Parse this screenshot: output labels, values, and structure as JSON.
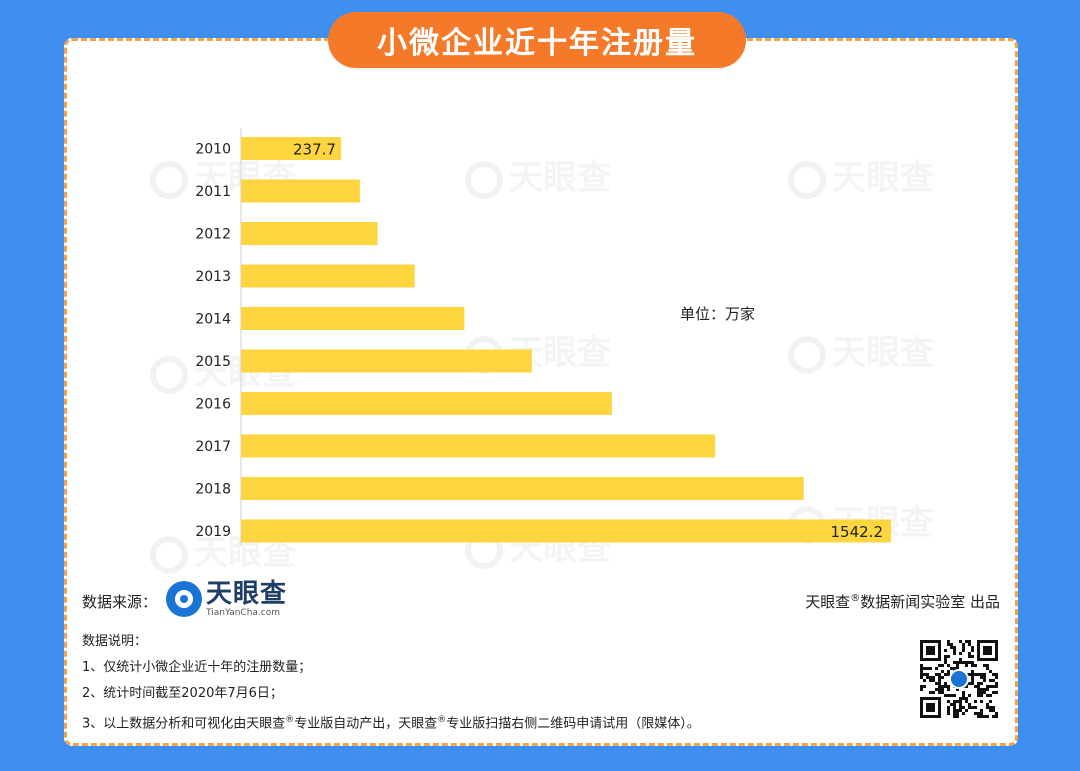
{
  "title": "小微企业近十年注册量",
  "unit_label": "单位：万家",
  "watermark_text": "天眼查",
  "source": {
    "label": "数据来源：",
    "logo_text": "天眼查",
    "logo_sub": "TianYanCha.com"
  },
  "credit": {
    "brand": "天眼查",
    "mark": "®",
    "rest": "数据新闻实验室 出品"
  },
  "notes": {
    "heading": "数据说明：",
    "items": [
      "1、仅统计小微企业近十年的注册数量；",
      "2、统计时间截至2020年7月6日；"
    ],
    "item3_a": "3、以上数据分析和可视化由天眼查",
    "item3_mark": "®",
    "item3_b": "专业版自动产出，天眼查",
    "item3_mark2": "®",
    "item3_c": "专业版扫描右侧二维码申请试用（限媒体）。"
  },
  "colors": {
    "bar": "#fcd53f",
    "title_bg": "#f47a2a",
    "page_bg": "#3f8ff0",
    "border": "#f5a04a"
  },
  "chart_data": {
    "type": "bar",
    "orientation": "horizontal",
    "title": "小微企业近十年注册量",
    "categories": [
      "2010",
      "2011",
      "2012",
      "2013",
      "2014",
      "2015",
      "2016",
      "2017",
      "2018",
      "2019"
    ],
    "values": [
      237.7,
      282,
      324,
      412,
      530,
      690,
      880,
      1125,
      1335,
      1542.2
    ],
    "data_labels": {
      "0": "237.7",
      "9": "1542.2"
    },
    "unit": "万家",
    "xlim": [
      0,
      1542.2
    ]
  }
}
